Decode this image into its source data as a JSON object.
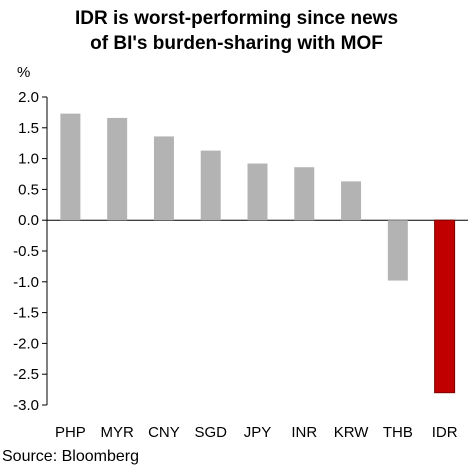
{
  "chart_data": {
    "type": "bar",
    "title": "IDR is worst-performing since news of BI's burden-sharing with MOF",
    "title_lines": [
      "IDR is worst-performing since news",
      "of BI's burden-sharing with MOF"
    ],
    "ylabel": "%",
    "xlabel": "",
    "categories": [
      "PHP",
      "MYR",
      "CNY",
      "SGD",
      "JPY",
      "INR",
      "KRW",
      "THB",
      "IDR"
    ],
    "values": [
      1.73,
      1.66,
      1.36,
      1.13,
      0.92,
      0.86,
      0.63,
      -0.98,
      -2.8
    ],
    "ylim": [
      -3.0,
      2.0
    ],
    "yticks": [
      2.0,
      1.5,
      1.0,
      0.5,
      0.0,
      -0.5,
      -1.0,
      -1.5,
      -2.0,
      -2.5,
      -3.0
    ],
    "ytick_labels": [
      "2.0",
      "1.5",
      "1.0",
      "0.5",
      "0.0",
      "-0.5",
      "-1.0",
      "-1.5",
      "-2.0",
      "-2.5",
      "-3.0"
    ],
    "grid": false,
    "legend": "none",
    "highlight_category": "IDR",
    "bar_color": "#b3b3b3",
    "highlight_color": "#c00000",
    "highlight_edge_color": "#7f0000",
    "source": "Source: Bloomberg"
  }
}
